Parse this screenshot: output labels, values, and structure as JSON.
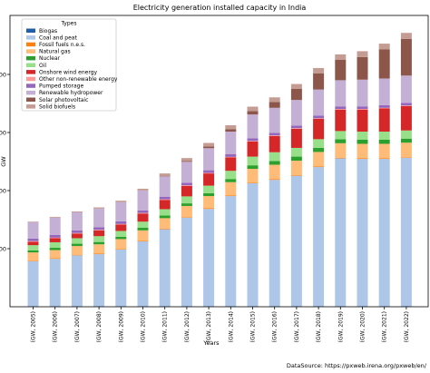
{
  "chart_data": {
    "type": "bar",
    "stacked": true,
    "title": "Electricity generation installed capacity in India",
    "xlabel": "Years",
    "ylabel": "GW",
    "ylim": [
      0,
      500
    ],
    "yticks": [
      100,
      200,
      300,
      400
    ],
    "grid": false,
    "legend_title": "Types",
    "legend_position": "top-left",
    "source_note": "DataSource: https://pxweb.irena.org/pxweb/en/",
    "categories": [
      "(GW, 2005)",
      "(GW, 2006)",
      "(GW, 2007)",
      "(GW, 2008)",
      "(GW, 2009)",
      "(GW, 2010)",
      "(GW, 2011)",
      "(GW, 2012)",
      "(GW, 2013)",
      "(GW, 2014)",
      "(GW, 2015)",
      "(GW, 2016)",
      "(GW, 2017)",
      "(GW, 2018)",
      "(GW, 2019)",
      "(GW, 2020)",
      "(GW, 2021)",
      "(GW, 2022)"
    ],
    "series": [
      {
        "name": "Biogas",
        "color": "#1f5fa8",
        "values": [
          0.5,
          0.5,
          0.5,
          0.5,
          0.5,
          0.5,
          0.5,
          0.5,
          0.5,
          0.5,
          0.5,
          0.5,
          0.5,
          0.5,
          0.5,
          0.5,
          0.5,
          0.5
        ]
      },
      {
        "name": "Coal and peat",
        "color": "#aec7e8",
        "values": [
          78,
          82,
          88,
          90,
          98,
          112,
          133,
          153,
          168,
          190,
          212,
          218,
          225,
          240,
          255,
          254,
          254,
          256
        ]
      },
      {
        "name": "Fossil fuels n.e.s.",
        "color": "#ff7f0e",
        "values": [
          1,
          1,
          1,
          1,
          1,
          1,
          1,
          1,
          1,
          1,
          1,
          1,
          1,
          1,
          1,
          1,
          1,
          1
        ]
      },
      {
        "name": "Natural gas",
        "color": "#ffbb78",
        "values": [
          14,
          14,
          15,
          16,
          17,
          18,
          18,
          19,
          21,
          23,
          24,
          25,
          25,
          25,
          25,
          25,
          25,
          25
        ]
      },
      {
        "name": "Nuclear",
        "color": "#2ca02c",
        "values": [
          3.5,
          4,
          4,
          4,
          4,
          4.5,
          4.5,
          4.5,
          5,
          5.5,
          6,
          6.5,
          7,
          7,
          7,
          7,
          7,
          7
        ]
      },
      {
        "name": "Oil",
        "color": "#98df8a",
        "values": [
          9,
          9.5,
          9.5,
          10,
          10,
          10.5,
          11,
          12,
          13,
          14,
          15,
          15,
          15,
          15,
          14,
          14,
          14,
          14
        ]
      },
      {
        "name": "Onshore wind energy",
        "color": "#d62728",
        "values": [
          6,
          7,
          8,
          10,
          11,
          14,
          16,
          18,
          21,
          23,
          26,
          28,
          33,
          35,
          37,
          38,
          40,
          42
        ]
      },
      {
        "name": "Other non-renewable energy",
        "color": "#ff9896",
        "values": [
          1,
          1,
          1,
          1,
          1,
          1,
          1,
          1,
          1,
          1,
          1,
          1,
          1,
          1,
          1,
          1,
          1,
          1
        ]
      },
      {
        "name": "Pumped storage",
        "color": "#9467bd",
        "values": [
          4.5,
          4.5,
          4.5,
          4.5,
          4.5,
          4.5,
          4.5,
          4.5,
          4.5,
          4.5,
          4.5,
          4.5,
          4.5,
          4.5,
          4.5,
          4.5,
          4.5,
          4.5
        ]
      },
      {
        "name": "Renewable hydropower",
        "color": "#c5b0d5",
        "values": [
          28,
          30,
          31,
          32,
          33,
          34,
          35,
          36,
          38,
          39,
          41,
          43,
          44,
          45,
          45,
          46,
          46,
          47
        ]
      },
      {
        "name": "Solar photovoltaic",
        "color": "#8c564b",
        "values": [
          0.1,
          0.1,
          0.1,
          0.1,
          0.1,
          0.2,
          1,
          1.5,
          3,
          4,
          6,
          10,
          19,
          28,
          35,
          39,
          50,
          63
        ]
      },
      {
        "name": "Solid biofuels",
        "color": "#c49c94",
        "values": [
          1,
          1.2,
          1.5,
          2,
          2.5,
          3,
          4,
          5,
          6,
          7,
          7.5,
          8,
          8.5,
          9,
          9.5,
          10,
          10,
          10.5
        ]
      }
    ]
  }
}
